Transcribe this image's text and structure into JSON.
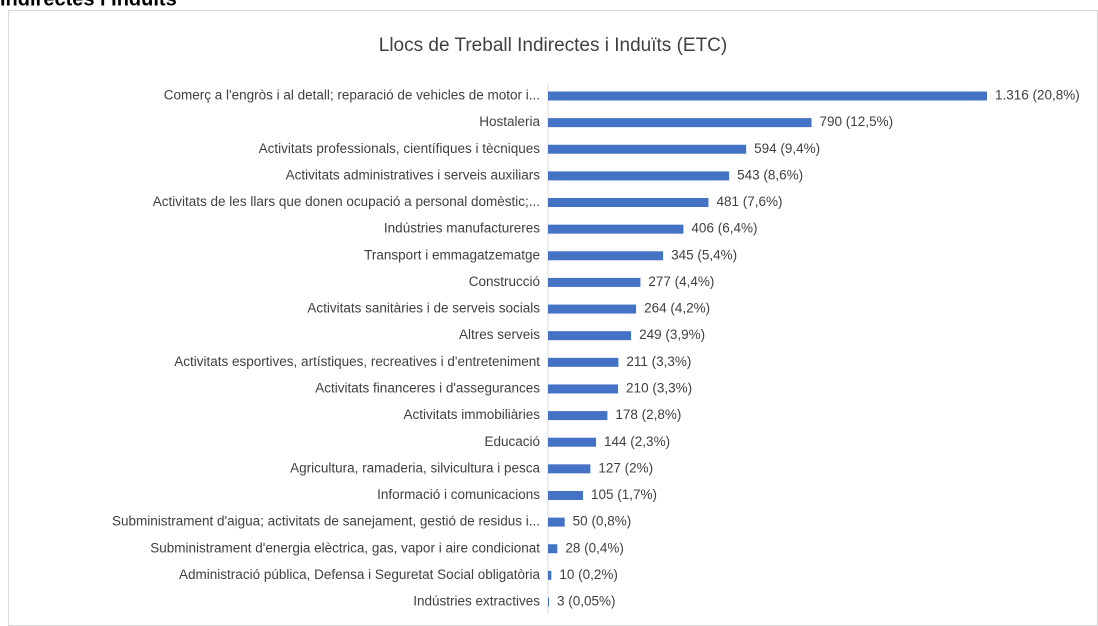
{
  "heading": "Indirectes i Induïts",
  "chart_data": {
    "type": "bar",
    "orientation": "horizontal",
    "title": "Llocs de Treball Indirectes i Induïts (ETC)",
    "color": "#4472c4",
    "categories": [
      "Comerç a l'engròs i al detall; reparació de vehicles de motor i...",
      "Hostaleria",
      "Activitats professionals, científiques i tècniques",
      "Activitats administratives i serveis auxiliars",
      "Activitats de les llars que donen ocupació a personal domèstic;...",
      "Indústries manufactureres",
      "Transport i emmagatzematge",
      "Construcció",
      "Activitats sanitàries i de serveis socials",
      "Altres serveis",
      "Activitats esportives,  artístiques, recreatives i d'entreteniment",
      "Activitats financeres i d'assegurances",
      "Activitats immobiliàries",
      "Educació",
      "Agricultura, ramaderia, silvicultura i pesca",
      "Informació i comunicacions",
      "Subministrament d'aigua; activitats de sanejament, gestió de residus i...",
      "Subministrament d'energia elèctrica, gas, vapor i aire condicionat",
      "Administració pública, Defensa i Seguretat Social obligatòria",
      "Indústries extractives"
    ],
    "values": [
      1316,
      790,
      594,
      543,
      481,
      406,
      345,
      277,
      264,
      249,
      211,
      210,
      178,
      144,
      127,
      105,
      50,
      28,
      10,
      3
    ],
    "value_labels": [
      "1.316 (20,8%)",
      "790 (12,5%)",
      "594 (9,4%)",
      "543 (8,6%)",
      "481 (7,6%)",
      "406 (6,4%)",
      "345 (5,4%)",
      "277 (4,4%)",
      "264 (4,2%)",
      "249 (3,9%)",
      "211 (3,3%)",
      "210 (3,3%)",
      "178 (2,8%)",
      "144 (2,3%)",
      "127 (2%)",
      "105 (1,7%)",
      "50 (0,8%)",
      "28 (0,4%)",
      "10 (0,2%)",
      "3 (0,05%)"
    ]
  }
}
